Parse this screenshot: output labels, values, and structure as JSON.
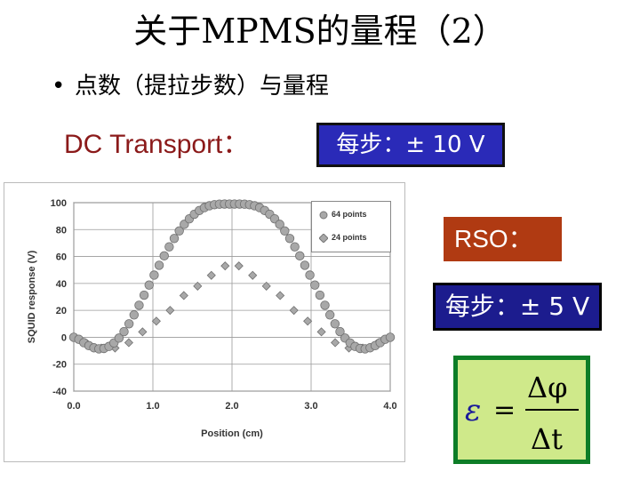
{
  "slide": {
    "title": "关于MPMS的量程（2）",
    "bullet_symbol": "•",
    "bullet": "点数（提拉步数）与量程",
    "dc_label": "DC Transport：",
    "dc_step": "每步：± 10 V",
    "rso_label": "RSO：",
    "rso_step": "每步：± 5 V"
  },
  "formula": {
    "lhs": "ε",
    "equals": "=",
    "numerator": "Δφ",
    "denominator": "Δt"
  },
  "colors": {
    "dc_label": "#8b1a1a",
    "dc_box": "#2a2ab8",
    "rso_box": "#b03a12",
    "rso_step_box": "#1c1c8e",
    "formula_bg": "#cfe98a",
    "formula_border": "#0d7d27",
    "marker": "#a8a8a8"
  },
  "chart_data": {
    "type": "scatter",
    "xlabel": "Position (cm)",
    "ylabel": "SQUID response (V)",
    "xlim": [
      0,
      4
    ],
    "ylim": [
      -40,
      100
    ],
    "x_ticks": [
      "0.0",
      "1.0",
      "2.0",
      "3.0",
      "4.0"
    ],
    "y_ticks": [
      "100",
      "80",
      "60",
      "40",
      "20",
      "0",
      "-20",
      "-40"
    ],
    "grid": true,
    "legend_position": "top-right",
    "series": [
      {
        "name": "64 points",
        "marker": "circle",
        "x": [
          0.0,
          0.0635,
          0.127,
          0.1905,
          0.254,
          0.3175,
          0.381,
          0.4445,
          0.508,
          0.5714,
          0.6349,
          0.6984,
          0.7619,
          0.8254,
          0.8889,
          0.9524,
          1.0159,
          1.0794,
          1.1429,
          1.2063,
          1.2698,
          1.3333,
          1.3968,
          1.4603,
          1.5238,
          1.5873,
          1.6508,
          1.7143,
          1.7778,
          1.8413,
          1.9048,
          1.9683,
          2.0317,
          2.0952,
          2.1587,
          2.2222,
          2.2857,
          2.3492,
          2.4127,
          2.4762,
          2.5397,
          2.6032,
          2.6667,
          2.7302,
          2.7937,
          2.8571,
          2.9206,
          2.9841,
          3.0476,
          3.1111,
          3.1746,
          3.2381,
          3.3016,
          3.3651,
          3.4286,
          3.4921,
          3.5556,
          3.619,
          3.6825,
          3.746,
          3.8095,
          3.873,
          3.9365,
          4.0
        ],
        "y": [
          0,
          -1.5,
          -4,
          -6.2,
          -7.8,
          -8.6,
          -8.3,
          -6.8,
          -4.2,
          -0.6,
          4.2,
          10,
          16.6,
          23.8,
          31.3,
          38.8,
          46.2,
          53.5,
          60.5,
          67.2,
          73.4,
          79,
          83.9,
          88,
          91.4,
          94.2,
          96.3,
          97.7,
          98.5,
          98.9,
          99,
          99,
          99,
          99,
          98.9,
          98.5,
          97.7,
          96.3,
          94.2,
          91.4,
          88,
          83.9,
          79,
          73.4,
          67.2,
          60.5,
          53.5,
          46.2,
          38.8,
          31.3,
          23.8,
          16.6,
          10,
          4.2,
          -0.6,
          -4.2,
          -6.8,
          -8.3,
          -8.6,
          -7.8,
          -6.2,
          -4,
          -1.5,
          0
        ]
      },
      {
        "name": "24 points",
        "marker": "diamond",
        "x": [
          0.0,
          0.1739,
          0.3478,
          0.5217,
          0.6957,
          0.8696,
          1.0435,
          1.2174,
          1.3913,
          1.5652,
          1.7391,
          1.913,
          2.087,
          2.2609,
          2.4348,
          2.6087,
          2.7826,
          2.9565,
          3.1304,
          3.3043,
          3.4783,
          3.6522,
          3.8261,
          4.0
        ],
        "y": [
          0,
          -5,
          -8,
          -8,
          -4,
          4,
          12,
          20,
          31,
          38,
          46,
          53,
          53,
          46,
          38,
          31,
          20,
          12,
          4,
          -4,
          -8,
          -8,
          -5,
          0
        ]
      }
    ]
  }
}
